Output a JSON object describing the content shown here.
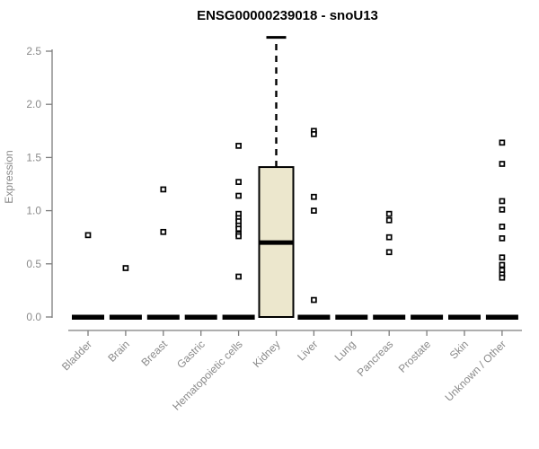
{
  "chart_data": {
    "type": "boxplot",
    "title": "ENSG00000239018 - snoU13",
    "xlabel": "",
    "ylabel": "Expression",
    "ylim": [
      0,
      2.5
    ],
    "yticks": [
      0.0,
      0.5,
      1.0,
      1.5,
      2.0,
      2.5
    ],
    "legend": "none",
    "grid": false,
    "categories": [
      "Bladder",
      "Brain",
      "Breast",
      "Gastric",
      "Hematopoietic cells",
      "Kidney",
      "Liver",
      "Lung",
      "Pancreas",
      "Prostate",
      "Skin",
      "Unknown / Other"
    ],
    "groups": [
      {
        "name": "Bladder",
        "box": {
          "q1": 0,
          "median": 0,
          "q3": 0
        },
        "points": [
          0.77
        ]
      },
      {
        "name": "Brain",
        "box": {
          "q1": 0,
          "median": 0,
          "q3": 0
        },
        "points": [
          0.46
        ]
      },
      {
        "name": "Breast",
        "box": {
          "q1": 0,
          "median": 0,
          "q3": 0
        },
        "points": [
          1.2,
          0.8
        ]
      },
      {
        "name": "Gastric",
        "box": {
          "q1": 0,
          "median": 0,
          "q3": 0
        },
        "points": []
      },
      {
        "name": "Hematopoietic cells",
        "box": {
          "q1": 0,
          "median": 0,
          "q3": 0
        },
        "points": [
          1.61,
          1.27,
          1.14,
          0.97,
          0.93,
          0.9,
          0.86,
          0.83,
          0.78,
          0.76,
          0.38
        ]
      },
      {
        "name": "Kidney",
        "box": {
          "q1": 0,
          "median": 0.7,
          "q3": 1.41,
          "whisker_high": 2.63
        },
        "points": []
      },
      {
        "name": "Liver",
        "box": {
          "q1": 0,
          "median": 0,
          "q3": 0
        },
        "points": [
          1.75,
          1.72,
          1.13,
          1.0,
          0.16
        ]
      },
      {
        "name": "Lung",
        "box": {
          "q1": 0,
          "median": 0,
          "q3": 0
        },
        "points": []
      },
      {
        "name": "Pancreas",
        "box": {
          "q1": 0,
          "median": 0,
          "q3": 0
        },
        "points": [
          0.97,
          0.91,
          0.75,
          0.61
        ]
      },
      {
        "name": "Prostate",
        "box": {
          "q1": 0,
          "median": 0,
          "q3": 0
        },
        "points": []
      },
      {
        "name": "Skin",
        "box": {
          "q1": 0,
          "median": 0,
          "q3": 0
        },
        "points": []
      },
      {
        "name": "Unknown / Other",
        "box": {
          "q1": 0,
          "median": 0,
          "q3": 0
        },
        "points": [
          1.64,
          1.44,
          1.09,
          1.01,
          0.85,
          0.74,
          0.56,
          0.49,
          0.44,
          0.4,
          0.37
        ]
      }
    ],
    "colors": {
      "box_fill": "#ece7cd",
      "box_stroke": "#000000",
      "median": "#000000",
      "whisker": "#000000",
      "point_stroke": "#000000",
      "point_fill": "#ffffff",
      "axis_line": "#7d7d7d",
      "text_gray": "#8a8a8a",
      "title": "#000000"
    }
  }
}
